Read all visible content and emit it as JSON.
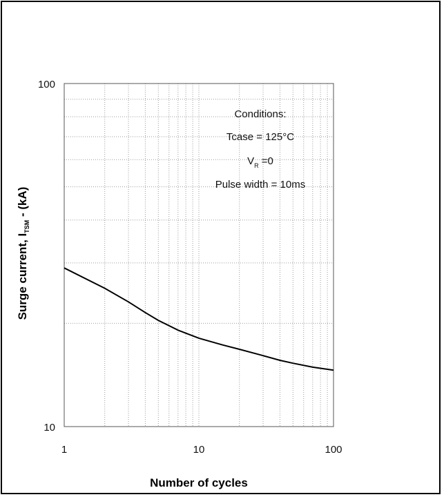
{
  "chart_data": {
    "type": "line",
    "xscale": "log",
    "yscale": "log",
    "xlim": [
      1,
      100
    ],
    "ylim": [
      10,
      100
    ],
    "grid": true,
    "xlabel": "Number of cycles",
    "ylabel_parts": {
      "pre": "Surge current, I",
      "sub": "TSM",
      "post": " - (kA)"
    },
    "xticks": [
      {
        "value": 1,
        "label": "1"
      },
      {
        "value": 10,
        "label": "10"
      },
      {
        "value": 100,
        "label": "100"
      }
    ],
    "yticks": [
      {
        "value": 10,
        "label": "10"
      },
      {
        "value": 100,
        "label": "100"
      }
    ],
    "series": [
      {
        "x": [
          1,
          2,
          3,
          4,
          5,
          7,
          10,
          15,
          20,
          30,
          40,
          50,
          70,
          100
        ],
        "y": [
          29,
          25.3,
          23.1,
          21.5,
          20.4,
          19.1,
          18.1,
          17.3,
          16.8,
          16.1,
          15.6,
          15.3,
          14.9,
          14.6
        ],
        "color": "#000000"
      }
    ],
    "conditions": {
      "title": "Conditions:",
      "line1": "Tcase = 125°C",
      "vr_main": "V",
      "vr_sub": "R",
      "vr_rest": " =0",
      "line3": "Pulse width = 10ms"
    }
  }
}
